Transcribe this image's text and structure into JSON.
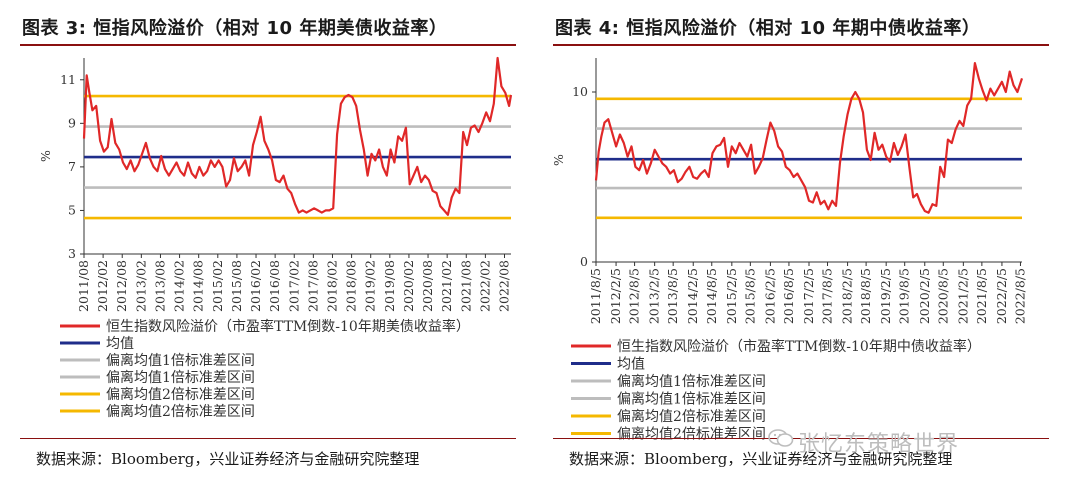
{
  "chart_data": [
    {
      "type": "line",
      "title": "图表 3:  恒指风险溢价（相对 10 年期美债收益率）",
      "ylabel": "%",
      "ylim": [
        3,
        12
      ],
      "yticks": [
        3,
        5,
        7,
        9,
        11
      ],
      "x_range": [
        2011.58,
        2022.75
      ],
      "x_tick_labels": [
        "2011/08",
        "2012/02",
        "2012/08",
        "2013/02",
        "2013/08",
        "2014/02",
        "2014/08",
        "2015/02",
        "2015/08",
        "2016/02",
        "2016/08",
        "2017/02",
        "2017/08",
        "2018/02",
        "2018/08",
        "2019/02",
        "2019/08",
        "2020/02",
        "2020/08",
        "2021/02",
        "2021/08",
        "2022/02",
        "2022/08"
      ],
      "x_tick_values": [
        2011.58,
        2012.08,
        2012.58,
        2013.08,
        2013.58,
        2014.08,
        2014.58,
        2015.08,
        2015.58,
        2016.08,
        2016.58,
        2017.08,
        2017.58,
        2018.08,
        2018.58,
        2019.08,
        2019.58,
        2020.08,
        2020.58,
        2021.08,
        2021.58,
        2022.08,
        2022.58
      ],
      "series": [
        {
          "name": "恒生指数风险溢价（市盈率TTM倒数-10年期美债收益率）",
          "color": "#e02828",
          "kind": "line",
          "x": [
            2011.58,
            2011.65,
            2011.72,
            2011.8,
            2011.9,
            2012.0,
            2012.1,
            2012.2,
            2012.3,
            2012.4,
            2012.5,
            2012.6,
            2012.7,
            2012.8,
            2012.9,
            2013.0,
            2013.1,
            2013.2,
            2013.3,
            2013.4,
            2013.5,
            2013.6,
            2013.7,
            2013.8,
            2013.9,
            2014.0,
            2014.1,
            2014.2,
            2014.3,
            2014.4,
            2014.5,
            2014.6,
            2014.7,
            2014.8,
            2014.9,
            2015.0,
            2015.1,
            2015.2,
            2015.3,
            2015.4,
            2015.5,
            2015.6,
            2015.7,
            2015.8,
            2015.9,
            2016.0,
            2016.1,
            2016.2,
            2016.3,
            2016.4,
            2016.5,
            2016.6,
            2016.7,
            2016.8,
            2016.9,
            2017.0,
            2017.1,
            2017.2,
            2017.3,
            2017.4,
            2017.5,
            2017.6,
            2017.7,
            2017.8,
            2017.9,
            2018.0,
            2018.1,
            2018.2,
            2018.3,
            2018.4,
            2018.5,
            2018.6,
            2018.7,
            2018.8,
            2018.9,
            2019.0,
            2019.1,
            2019.2,
            2019.3,
            2019.4,
            2019.5,
            2019.6,
            2019.7,
            2019.8,
            2019.9,
            2020.0,
            2020.1,
            2020.2,
            2020.3,
            2020.4,
            2020.5,
            2020.6,
            2020.7,
            2020.8,
            2020.9,
            2021.0,
            2021.1,
            2021.2,
            2021.3,
            2021.4,
            2021.5,
            2021.6,
            2021.7,
            2021.8,
            2021.9,
            2022.0,
            2022.1,
            2022.2,
            2022.3,
            2022.4,
            2022.5,
            2022.6,
            2022.7,
            2022.75
          ],
          "y": [
            8.3,
            11.2,
            10.4,
            9.6,
            9.8,
            8.2,
            7.7,
            7.9,
            9.2,
            8.1,
            7.8,
            7.2,
            6.9,
            7.3,
            6.8,
            7.1,
            7.6,
            8.1,
            7.4,
            7.0,
            6.8,
            7.5,
            6.9,
            6.6,
            6.9,
            7.2,
            6.8,
            6.6,
            7.2,
            6.7,
            6.5,
            7.0,
            6.6,
            6.8,
            7.3,
            7.0,
            7.3,
            7.0,
            6.1,
            6.4,
            7.4,
            6.8,
            7.0,
            7.3,
            6.6,
            8.0,
            8.6,
            9.3,
            8.2,
            7.8,
            7.3,
            6.4,
            6.3,
            6.6,
            6.0,
            5.8,
            5.3,
            4.9,
            5.0,
            4.9,
            5.0,
            5.1,
            5.0,
            4.9,
            5.0,
            5.0,
            5.1,
            8.5,
            9.9,
            10.2,
            10.3,
            10.2,
            9.8,
            8.7,
            7.8,
            6.6,
            7.6,
            7.3,
            7.8,
            7.0,
            6.6,
            7.8,
            7.2,
            8.4,
            8.2,
            8.8,
            6.2,
            6.6,
            7.0,
            6.3,
            6.6,
            6.4,
            5.9,
            5.8,
            5.2,
            5.0,
            4.8,
            5.6,
            6.0,
            5.8,
            8.6,
            8.0,
            8.8,
            8.9,
            8.6,
            9.0,
            9.5,
            9.1,
            9.9,
            12.0,
            10.7,
            10.4,
            9.8,
            10.3
          ]
        },
        {
          "name": "均值",
          "color": "#1f2d8a",
          "kind": "hline",
          "value": 7.45
        },
        {
          "name": "偏离均值1倍标准差区间",
          "color": "#bdbdbd",
          "kind": "hline",
          "value": 8.85
        },
        {
          "name": "偏离均值1倍标准差区间",
          "color": "#bdbdbd",
          "kind": "hline",
          "value": 6.05
        },
        {
          "name": "偏离均值2倍标准差区间",
          "color": "#f5b800",
          "kind": "hline",
          "value": 10.25
        },
        {
          "name": "偏离均值2倍标准差区间",
          "color": "#f5b800",
          "kind": "hline",
          "value": 4.65
        }
      ],
      "legend": [
        "恒生指数风险溢价（市盈率TTM倒数-10年期美债收益率）",
        "均值",
        "偏离均值1倍标准差区间",
        "偏离均值1倍标准差区间",
        "偏离均值2倍标准差区间",
        "偏离均值2倍标准差区间"
      ],
      "source": "数据来源：Bloomberg，兴业证券经济与金融研究院整理"
    },
    {
      "type": "line",
      "title": "图表 4:  恒指风险溢价（相对 10 年期中债收益率）",
      "ylabel": "%",
      "ylim": [
        0,
        12
      ],
      "yticks": [
        0,
        10
      ],
      "x_range": [
        2011.58,
        2022.62
      ],
      "x_tick_labels": [
        "2011/8/5",
        "2012/2/5",
        "2012/8/5",
        "2013/2/5",
        "2013/8/5",
        "2014/2/5",
        "2014/8/5",
        "2015/2/5",
        "2015/8/5",
        "2016/2/5",
        "2016/8/5",
        "2017/2/5",
        "2017/8/5",
        "2018/2/5",
        "2018/8/5",
        "2019/2/5",
        "2019/8/5",
        "2020/2/5",
        "2020/8/5",
        "2021/2/5",
        "2021/8/5",
        "2022/2/5",
        "2022/8/5"
      ],
      "x_tick_values": [
        2011.58,
        2012.1,
        2012.58,
        2013.1,
        2013.58,
        2014.1,
        2014.58,
        2015.1,
        2015.58,
        2016.1,
        2016.58,
        2017.1,
        2017.58,
        2018.1,
        2018.58,
        2019.1,
        2019.58,
        2020.1,
        2020.58,
        2021.1,
        2021.58,
        2022.1,
        2022.58
      ],
      "series": [
        {
          "name": "恒生指数风险溢价（市盈率TTM倒数-10年期中债收益率）",
          "color": "#e02828",
          "kind": "line",
          "x": [
            2011.58,
            2011.65,
            2011.72,
            2011.8,
            2011.9,
            2012.0,
            2012.1,
            2012.2,
            2012.3,
            2012.4,
            2012.5,
            2012.6,
            2012.7,
            2012.8,
            2012.9,
            2013.0,
            2013.1,
            2013.2,
            2013.3,
            2013.4,
            2013.5,
            2013.6,
            2013.7,
            2013.8,
            2013.9,
            2014.0,
            2014.1,
            2014.2,
            2014.3,
            2014.4,
            2014.5,
            2014.6,
            2014.7,
            2014.8,
            2014.9,
            2015.0,
            2015.1,
            2015.2,
            2015.3,
            2015.4,
            2015.5,
            2015.6,
            2015.7,
            2015.8,
            2015.9,
            2016.0,
            2016.1,
            2016.2,
            2016.3,
            2016.4,
            2016.5,
            2016.6,
            2016.7,
            2016.8,
            2016.9,
            2017.0,
            2017.1,
            2017.2,
            2017.3,
            2017.4,
            2017.5,
            2017.6,
            2017.7,
            2017.8,
            2017.9,
            2018.0,
            2018.1,
            2018.2,
            2018.3,
            2018.4,
            2018.5,
            2018.6,
            2018.7,
            2018.8,
            2018.9,
            2019.0,
            2019.1,
            2019.2,
            2019.3,
            2019.4,
            2019.5,
            2019.6,
            2019.7,
            2019.8,
            2019.9,
            2020.0,
            2020.1,
            2020.2,
            2020.3,
            2020.4,
            2020.5,
            2020.6,
            2020.7,
            2020.8,
            2020.9,
            2021.0,
            2021.1,
            2021.2,
            2021.3,
            2021.4,
            2021.5,
            2021.6,
            2021.7,
            2021.8,
            2021.9,
            2022.0,
            2022.1,
            2022.2,
            2022.3,
            2022.4,
            2022.5,
            2022.62
          ],
          "y": [
            4.8,
            6.5,
            7.4,
            8.2,
            8.4,
            7.6,
            6.8,
            7.5,
            7.0,
            6.2,
            6.8,
            5.6,
            5.4,
            6.0,
            5.2,
            5.8,
            6.6,
            6.2,
            5.8,
            5.6,
            5.2,
            5.4,
            4.7,
            4.9,
            5.3,
            5.6,
            5.0,
            4.9,
            5.2,
            5.4,
            5.0,
            6.4,
            6.8,
            6.9,
            7.3,
            5.6,
            6.8,
            6.4,
            7.0,
            6.6,
            6.2,
            6.9,
            5.2,
            5.6,
            6.1,
            7.2,
            8.2,
            7.7,
            6.8,
            6.5,
            5.6,
            5.4,
            5.0,
            5.2,
            4.8,
            4.4,
            3.6,
            3.5,
            4.1,
            3.4,
            3.6,
            3.1,
            3.6,
            3.3,
            5.8,
            7.4,
            8.7,
            9.6,
            10.0,
            9.6,
            8.8,
            6.6,
            6.0,
            7.6,
            6.6,
            6.9,
            6.2,
            5.9,
            7.0,
            6.3,
            6.8,
            7.5,
            5.6,
            3.8,
            4.0,
            3.4,
            3.0,
            2.9,
            3.4,
            3.3,
            5.6,
            5.0,
            7.2,
            7.0,
            7.8,
            8.3,
            8.0,
            9.2,
            9.6,
            11.7,
            10.8,
            10.1,
            9.5,
            10.2,
            9.8,
            10.2,
            10.6,
            10.0,
            11.2,
            10.4,
            10.0,
            10.8
          ]
        },
        {
          "name": "均值",
          "color": "#1f2d8a",
          "kind": "hline",
          "value": 6.05
        },
        {
          "name": "偏离均值1倍标准差区间",
          "color": "#bdbdbd",
          "kind": "hline",
          "value": 7.85
        },
        {
          "name": "偏离均值1倍标准差区间",
          "color": "#bdbdbd",
          "kind": "hline",
          "value": 4.35
        },
        {
          "name": "偏离均值2倍标准差区间",
          "color": "#f5b800",
          "kind": "hline",
          "value": 9.6
        },
        {
          "name": "偏离均值2倍标准差区间",
          "color": "#f5b800",
          "kind": "hline",
          "value": 2.6
        }
      ],
      "legend": [
        "恒生指数风险溢价（市盈率TTM倒数-10年期中债收益率）",
        "均值",
        "偏离均值1倍标准差区间",
        "偏离均值1倍标准差区间",
        "偏离均值2倍标准差区间",
        "偏离均值2倍标准差区间"
      ],
      "source": "数据来源：Bloomberg，兴业证券经济与金融研究院整理"
    }
  ],
  "watermark": "张忆东策略世界"
}
